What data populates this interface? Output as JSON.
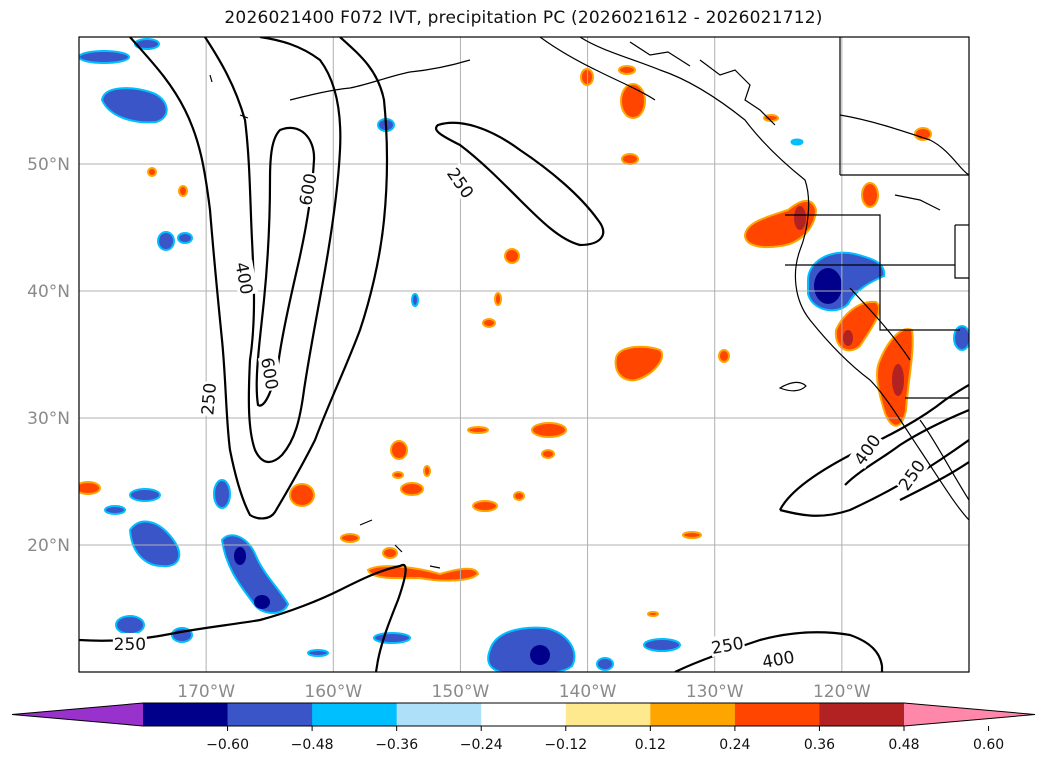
{
  "title": "2026021400 F072 IVT, precipitation PC (2026021612 - 2026021712)",
  "map": {
    "lon_range": [
      -180,
      -110
    ],
    "lat_range": [
      10,
      60
    ],
    "lon_ticks": [
      {
        "value": -170,
        "label": "170°W"
      },
      {
        "value": -160,
        "label": "160°W"
      },
      {
        "value": -150,
        "label": "150°W"
      },
      {
        "value": -140,
        "label": "140°W"
      },
      {
        "value": -130,
        "label": "130°W"
      },
      {
        "value": -120,
        "label": "120°W"
      }
    ],
    "lat_ticks": [
      {
        "value": 20,
        "label": "20°N"
      },
      {
        "value": 30,
        "label": "30°N"
      },
      {
        "value": 40,
        "label": "40°N"
      },
      {
        "value": 50,
        "label": "50°N"
      }
    ],
    "grid": true,
    "contour_labels": [
      {
        "text": "250",
        "lon": -150,
        "lat": 48.5,
        "angle": 55
      },
      {
        "text": "400",
        "lon": -167,
        "lat": 41,
        "angle": 80
      },
      {
        "text": "600",
        "lon": -162,
        "lat": 48,
        "angle": -80
      },
      {
        "text": "600",
        "lon": -165,
        "lat": 33.5,
        "angle": 80
      },
      {
        "text": "250",
        "lon": -169.8,
        "lat": 31.5,
        "angle": -85
      },
      {
        "text": "250",
        "lon": -176,
        "lat": 12.2,
        "angle": 0
      },
      {
        "text": "250",
        "lon": -129,
        "lat": 12.1,
        "angle": -10
      },
      {
        "text": "400",
        "lon": -125,
        "lat": 11,
        "angle": -10
      },
      {
        "text": "400",
        "lon": -118,
        "lat": 27.5,
        "angle": -55
      },
      {
        "text": "250",
        "lon": -114.5,
        "lat": 25.5,
        "angle": -55
      }
    ]
  },
  "colorbar": {
    "colors": [
      "#9932cc",
      "#00008b",
      "#3a55c8",
      "#00bfff",
      "#aee0fa",
      "#ffffff",
      "#ffe98f",
      "#ffa500",
      "#ff4500",
      "#b22222",
      "#ff88aa"
    ],
    "labels": [
      "−0.60",
      "−0.48",
      "−0.36",
      "−0.24",
      "−0.12",
      "0.12",
      "0.24",
      "0.36",
      "0.48",
      "0.60"
    ],
    "extend": "both"
  }
}
